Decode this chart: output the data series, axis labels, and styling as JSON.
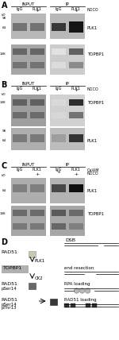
{
  "fig_width": 1.5,
  "fig_height": 4.28,
  "dpi": 100,
  "bg_color": "#ffffff",
  "fs": 4.5,
  "lfs": 7.0,
  "col_labels": [
    "IgG",
    "PLK1",
    "IgG",
    "PLK1"
  ],
  "panel_A": {
    "label": "A",
    "blot1_name": "PLK1",
    "blot1_kd_top": "98",
    "blot1_kd_bot": "64",
    "blot2_name": "TOPBP1",
    "blot2_kd": "148"
  },
  "panel_B": {
    "label": "B",
    "blot1_name": "TOPBP1",
    "blot1_kd": "148",
    "blot2_name": "PLK1",
    "blot2_kd_top": "98",
    "blot2_kd_bot": "64"
  },
  "panel_C": {
    "label": "C",
    "blot1_name": "PLK1",
    "blot1_kd": "64",
    "blot2_name": "TOPBP1",
    "blot2_kd": "148"
  },
  "panel_D": {
    "label": "D",
    "dsb_label": "DSB",
    "step1_left": [
      "RAD51"
    ],
    "step2_left": [
      "TOPBP1"
    ],
    "step3_left": [
      "RAD51",
      "pSer14"
    ],
    "step4_left": [
      "RAD51",
      "pSer14",
      "pThr13"
    ],
    "arrow1": "PLK1",
    "arrow2": "CK2",
    "label_end_resection": "end resection",
    "label_rpa": "RPA loading",
    "label_rad51": "RAD51 loading"
  }
}
